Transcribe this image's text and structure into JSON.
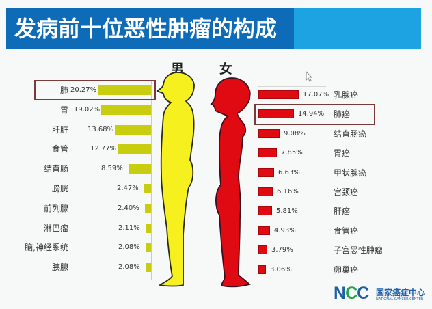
{
  "title": "发病前十位恶性肿瘤的构成",
  "labels": {
    "male": "男",
    "female": "女"
  },
  "colors": {
    "title_bg": "#0d6bb8",
    "title_accent": "#1ea3e2",
    "male": "#c9cd10",
    "male_figure": "#f5f01e",
    "female": "#e00b12"
  },
  "male": [
    {
      "label": "肺",
      "value": "20.27%"
    },
    {
      "label": "胃",
      "value": "19.02%"
    },
    {
      "label": "肝脏",
      "value": "13.68%"
    },
    {
      "label": "食管",
      "value": "12.77%"
    },
    {
      "label": "结直肠",
      "value": "8.59%"
    },
    {
      "label": "膀胱",
      "value": "2.47%"
    },
    {
      "label": "前列腺",
      "value": "2.40%"
    },
    {
      "label": "淋巴瘤",
      "value": "2.11%"
    },
    {
      "label": "脑,神经系统",
      "value": "2.08%"
    },
    {
      "label": "胰腺",
      "value": "2.08%"
    }
  ],
  "female": [
    {
      "label": "乳腺癌",
      "value": "17.07%"
    },
    {
      "label": "肺癌",
      "value": "14.94%"
    },
    {
      "label": "结直肠癌",
      "value": "9.08%"
    },
    {
      "label": "胃癌",
      "value": "7.85%"
    },
    {
      "label": "甲状腺癌",
      "value": "6.63%"
    },
    {
      "label": "宫颈癌",
      "value": "6.16%"
    },
    {
      "label": "肝癌",
      "value": "5.81%"
    },
    {
      "label": "食管癌",
      "value": "4.93%"
    },
    {
      "label": "子宫恶性肿瘤",
      "value": "3.79%"
    },
    {
      "label": "卵巢癌",
      "value": "3.06%"
    }
  ],
  "logo": {
    "abbr_n": "N",
    "abbr_c1": "C",
    "abbr_c2": "C",
    "cn": "国家癌症中心",
    "en": "NATIONAL CANCER CENTER"
  },
  "chart_data": [
    {
      "type": "bar",
      "title": "发病前十位恶性肿瘤的构成 - 男",
      "orientation": "horizontal",
      "categories": [
        "肺",
        "胃",
        "肝脏",
        "食管",
        "结直肠",
        "膀胱",
        "前列腺",
        "淋巴瘤",
        "脑,神经系统",
        "胰腺"
      ],
      "values": [
        20.27,
        19.02,
        13.68,
        12.77,
        8.59,
        2.47,
        2.4,
        2.11,
        2.08,
        2.08
      ],
      "unit": "%",
      "color": "#c9cd10",
      "highlighted": [
        "肺"
      ],
      "grid": false
    },
    {
      "type": "bar",
      "title": "发病前十位恶性肿瘤的构成 - 女",
      "orientation": "horizontal",
      "categories": [
        "乳腺癌",
        "肺癌",
        "结直肠癌",
        "胃癌",
        "甲状腺癌",
        "宫颈癌",
        "肝癌",
        "食管癌",
        "子宫恶性肿瘤",
        "卵巢癌"
      ],
      "values": [
        17.07,
        14.94,
        9.08,
        7.85,
        6.63,
        6.16,
        5.81,
        4.93,
        3.79,
        3.06
      ],
      "unit": "%",
      "color": "#e00b12",
      "highlighted": [
        "肺癌"
      ],
      "grid": false
    }
  ]
}
